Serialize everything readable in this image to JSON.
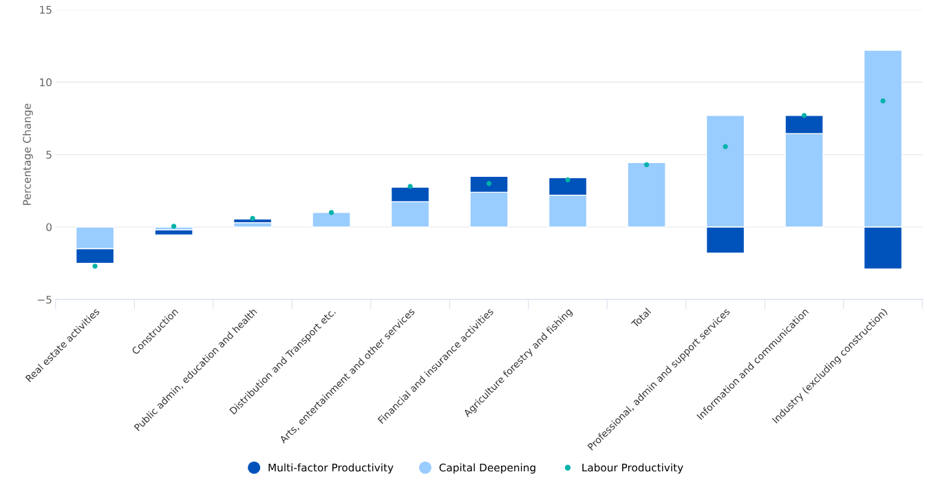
{
  "chart_data": {
    "type": "bar",
    "stacked": true,
    "ylabel": "Percentage Change",
    "categories": [
      "Real estate activities",
      "Construction",
      "Public admin, education and health",
      "Distribution and Transport etc.",
      "Arts, entertainment and other services",
      "Financial and insurance activities",
      "Agriculture forestry and fishing",
      "Total",
      "Professional, admin and support services",
      "Information and communication",
      "Industry (excluding construction)"
    ],
    "series": [
      {
        "name": "Capital Deepening",
        "color": "#99ccff",
        "values": [
          -1.5,
          -0.2,
          0.3,
          1.0,
          1.75,
          2.4,
          2.2,
          4.45,
          7.7,
          6.45,
          12.2
        ]
      },
      {
        "name": "Multi-factor Productivity",
        "color": "#0052bb",
        "values": [
          -1.0,
          -0.35,
          0.25,
          null,
          1.0,
          1.1,
          1.2,
          null,
          -1.8,
          1.25,
          -2.9
        ]
      },
      {
        "name": "Labour Productivity",
        "type": "scatter",
        "color": "#00b2a9",
        "values": [
          -2.7,
          0.05,
          0.6,
          1.0,
          2.8,
          3.0,
          3.25,
          4.3,
          5.55,
          7.7,
          8.7
        ]
      }
    ],
    "ylim": [
      -5,
      15
    ],
    "yticks": [
      -5,
      0,
      5,
      10,
      15
    ],
    "grid": "y",
    "legend": "bottom",
    "marker": "circle"
  }
}
